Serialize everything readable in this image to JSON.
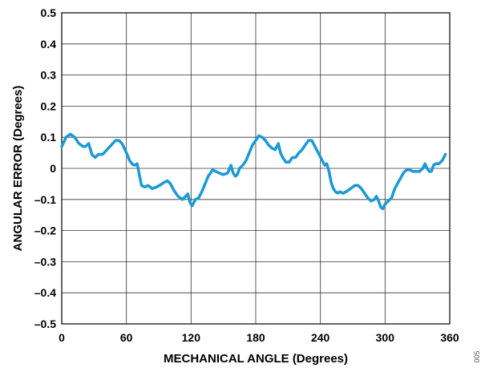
{
  "chart_data": {
    "type": "line",
    "xlabel": "MECHANICAL ANGLE (Degrees)",
    "ylabel": "ANGULAR ERROR (Degrees)",
    "xlim": [
      0,
      360
    ],
    "ylim": [
      -0.5,
      0.5
    ],
    "x_ticks": [
      0,
      60,
      120,
      180,
      240,
      300,
      360
    ],
    "y_ticks": [
      0.5,
      0.4,
      0.3,
      0.2,
      0.1,
      0,
      -0.1,
      -0.2,
      -0.3,
      -0.4,
      -0.5
    ],
    "x_tick_labels": [
      "0",
      "60",
      "120",
      "180",
      "240",
      "300",
      "360"
    ],
    "y_tick_labels": [
      "0.5",
      "0.4",
      "0.3",
      "0.2",
      "0.1",
      "0",
      "–0.1",
      "–0.2",
      "–0.3",
      "–0.4",
      "–0.5"
    ],
    "grid": true,
    "line_color": "#1a9ad6",
    "series": [
      {
        "x": [
          0,
          4,
          8,
          12,
          16,
          20,
          22,
          25,
          28,
          31,
          34,
          38,
          42,
          46,
          50,
          53,
          56,
          60,
          63,
          66,
          68,
          70,
          72,
          74,
          77,
          80,
          84,
          88,
          92,
          95,
          98,
          101,
          104,
          108,
          112,
          115,
          117,
          119,
          121,
          124,
          127,
          130,
          133,
          136,
          140,
          143,
          146,
          150,
          154,
          157,
          159,
          161,
          163,
          165,
          168,
          171,
          174,
          177,
          180,
          183,
          186,
          189,
          192,
          195,
          198,
          201,
          203,
          205,
          208,
          211,
          214,
          217,
          220,
          223,
          226,
          229,
          232,
          235,
          238,
          241,
          244,
          246,
          248,
          250,
          252,
          254,
          256,
          258,
          261,
          264,
          268,
          272,
          275,
          278,
          281,
          284,
          287,
          290,
          292,
          294,
          296,
          298,
          300,
          303,
          306,
          309,
          313,
          317,
          320,
          323,
          326,
          329,
          332,
          335,
          337,
          339,
          341,
          343,
          345,
          347,
          350,
          353,
          356
        ],
        "y": [
          0.07,
          0.1,
          0.11,
          0.1,
          0.08,
          0.07,
          0.07,
          0.08,
          0.045,
          0.035,
          0.045,
          0.045,
          0.06,
          0.075,
          0.09,
          0.09,
          0.08,
          0.05,
          0.025,
          0.012,
          0.01,
          0.015,
          -0.02,
          -0.055,
          -0.06,
          -0.055,
          -0.065,
          -0.06,
          -0.052,
          -0.045,
          -0.04,
          -0.05,
          -0.07,
          -0.09,
          -0.1,
          -0.09,
          -0.082,
          -0.11,
          -0.12,
          -0.1,
          -0.095,
          -0.075,
          -0.05,
          -0.025,
          -0.005,
          -0.01,
          -0.015,
          -0.02,
          -0.015,
          0.01,
          -0.015,
          -0.025,
          -0.02,
          0.0,
          0.01,
          0.025,
          0.05,
          0.075,
          0.09,
          0.105,
          0.1,
          0.09,
          0.075,
          0.065,
          0.06,
          0.08,
          0.05,
          0.035,
          0.02,
          0.02,
          0.035,
          0.035,
          0.05,
          0.06,
          0.075,
          0.09,
          0.09,
          0.07,
          0.05,
          0.03,
          0.01,
          0.015,
          -0.01,
          -0.045,
          -0.065,
          -0.075,
          -0.08,
          -0.075,
          -0.08,
          -0.075,
          -0.065,
          -0.055,
          -0.055,
          -0.065,
          -0.08,
          -0.095,
          -0.105,
          -0.1,
          -0.09,
          -0.105,
          -0.125,
          -0.13,
          -0.115,
          -0.105,
          -0.095,
          -0.065,
          -0.04,
          -0.015,
          -0.005,
          -0.005,
          -0.01,
          -0.01,
          -0.01,
          0.0,
          0.015,
          0.0,
          -0.01,
          -0.01,
          0.01,
          0.015,
          0.015,
          0.025,
          0.045
        ]
      }
    ]
  },
  "figure_id": "005"
}
